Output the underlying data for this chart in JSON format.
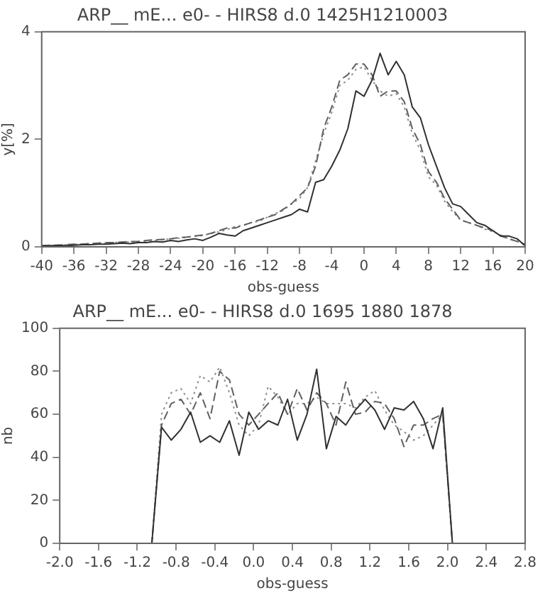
{
  "chart_data": [
    {
      "type": "line",
      "title": "ARP__ mE... e0- - HIRS8 d.0 1425H1210003",
      "xlabel": "obs-guess",
      "ylabel": "y[%]",
      "x": [
        -40,
        -39,
        -38,
        -37,
        -36,
        -35,
        -34,
        -33,
        -32,
        -31,
        -30,
        -29,
        -28,
        -27,
        -26,
        -25,
        -24,
        -23,
        -22,
        -21,
        -20,
        -19,
        -18,
        -17,
        -16,
        -15,
        -14,
        -13,
        -12,
        -11,
        -10,
        -9,
        -8,
        -7,
        -6,
        -5,
        -4,
        -3,
        -2,
        -1,
        0,
        1,
        2,
        3,
        4,
        5,
        6,
        7,
        8,
        9,
        10,
        11,
        12,
        13,
        14,
        15,
        16,
        17,
        18,
        19,
        20
      ],
      "series": [
        {
          "color": "#303030",
          "line_style": "solid",
          "values": [
            0.02,
            0.02,
            0.03,
            0.02,
            0.03,
            0.04,
            0.04,
            0.05,
            0.05,
            0.06,
            0.07,
            0.06,
            0.08,
            0.08,
            0.1,
            0.09,
            0.12,
            0.1,
            0.13,
            0.15,
            0.12,
            0.18,
            0.25,
            0.22,
            0.2,
            0.3,
            0.35,
            0.4,
            0.45,
            0.5,
            0.55,
            0.6,
            0.7,
            0.65,
            1.2,
            1.25,
            1.5,
            1.8,
            2.2,
            2.9,
            2.8,
            3.1,
            3.6,
            3.2,
            3.45,
            3.2,
            2.6,
            2.4,
            1.9,
            1.5,
            1.1,
            0.8,
            0.75,
            0.6,
            0.45,
            0.4,
            0.3,
            0.2,
            0.2,
            0.15,
            0.02
          ]
        },
        {
          "color": "#606060",
          "line_style": "dashed",
          "values": [
            0.02,
            0.03,
            0.03,
            0.04,
            0.05,
            0.05,
            0.06,
            0.07,
            0.08,
            0.08,
            0.09,
            0.1,
            0.1,
            0.12,
            0.13,
            0.14,
            0.15,
            0.17,
            0.18,
            0.2,
            0.22,
            0.25,
            0.3,
            0.35,
            0.35,
            0.4,
            0.45,
            0.5,
            0.55,
            0.6,
            0.7,
            0.8,
            0.95,
            1.1,
            1.5,
            2.2,
            2.6,
            3.1,
            3.2,
            3.4,
            3.4,
            3.2,
            2.8,
            2.9,
            2.9,
            2.7,
            2.2,
            1.9,
            1.4,
            1.2,
            0.9,
            0.7,
            0.5,
            0.45,
            0.4,
            0.35,
            0.3,
            0.2,
            0.15,
            0.1,
            0.05
          ]
        },
        {
          "color": "#909090",
          "line_style": "dotted",
          "values": [
            0.02,
            0.02,
            0.03,
            0.04,
            0.04,
            0.05,
            0.06,
            0.06,
            0.07,
            0.08,
            0.09,
            0.09,
            0.1,
            0.11,
            0.12,
            0.13,
            0.15,
            0.16,
            0.18,
            0.2,
            0.21,
            0.25,
            0.28,
            0.32,
            0.38,
            0.4,
            0.45,
            0.48,
            0.55,
            0.62,
            0.68,
            0.8,
            0.9,
            1.1,
            1.6,
            2.1,
            2.5,
            3.0,
            3.1,
            3.3,
            3.35,
            3.1,
            2.9,
            2.8,
            2.85,
            2.6,
            2.1,
            1.8,
            1.3,
            1.15,
            0.85,
            0.65,
            0.5,
            0.45,
            0.4,
            0.33,
            0.28,
            0.22,
            0.15,
            0.1,
            0.04
          ]
        }
      ],
      "xlim": [
        -40,
        20
      ],
      "xticks": [
        -40,
        -36,
        -32,
        -28,
        -24,
        -20,
        -16,
        -12,
        -8,
        -4,
        0,
        4,
        8,
        12,
        16,
        20
      ],
      "ylim": [
        0,
        4
      ],
      "yticks": [
        0,
        2,
        4
      ],
      "grid": false,
      "legend": false,
      "marker": "none"
    },
    {
      "type": "line",
      "title": "ARP__ mE... e0- - HIRS8 d.0 1695 1880 1878",
      "xlabel": "obs-guess",
      "ylabel": "nb",
      "series": [
        {
          "color": "#303030",
          "line_style": "solid",
          "x": [
            -2.0,
            -1.05,
            -0.95,
            -0.85,
            -0.75,
            -0.65,
            -0.55,
            -0.45,
            -0.35,
            -0.25,
            -0.15,
            -0.05,
            0.05,
            0.15,
            0.25,
            0.35,
            0.45,
            0.55,
            0.65,
            0.75,
            0.85,
            0.95,
            1.05,
            1.15,
            1.25,
            1.35,
            1.45,
            1.55,
            1.65,
            1.75,
            1.85,
            1.95,
            2.05,
            2.8
          ],
          "values": [
            0,
            0,
            54,
            48,
            53,
            61,
            47,
            50,
            47,
            57,
            41,
            61,
            53,
            57,
            55,
            67,
            48,
            60,
            81,
            44,
            59,
            55,
            62,
            67,
            62,
            53,
            63,
            62,
            66,
            58,
            44,
            63,
            0,
            0
          ]
        },
        {
          "color": "#606060",
          "line_style": "dashed",
          "x": [
            -2.0,
            -1.05,
            -0.95,
            -0.85,
            -0.75,
            -0.65,
            -0.55,
            -0.45,
            -0.35,
            -0.25,
            -0.15,
            -0.05,
            0.05,
            0.15,
            0.25,
            0.35,
            0.45,
            0.55,
            0.65,
            0.75,
            0.85,
            0.95,
            1.05,
            1.15,
            1.25,
            1.35,
            1.45,
            1.55,
            1.65,
            1.75,
            1.85,
            1.95,
            2.05,
            2.8
          ],
          "values": [
            0,
            0,
            55,
            65,
            67,
            60,
            70,
            58,
            80,
            76,
            60,
            55,
            60,
            65,
            70,
            60,
            72,
            62,
            70,
            65,
            55,
            75,
            60,
            61,
            66,
            65,
            58,
            45,
            55,
            55,
            58,
            60,
            0,
            0
          ]
        },
        {
          "color": "#909090",
          "line_style": "dotted",
          "x": [
            -2.0,
            -1.05,
            -0.95,
            -0.85,
            -0.75,
            -0.65,
            -0.55,
            -0.45,
            -0.35,
            -0.25,
            -0.15,
            -0.05,
            0.05,
            0.15,
            0.25,
            0.35,
            0.45,
            0.55,
            0.65,
            0.75,
            0.85,
            0.95,
            1.05,
            1.15,
            1.25,
            1.35,
            1.45,
            1.55,
            1.65,
            1.75,
            1.85,
            1.95,
            2.05,
            2.8
          ],
          "values": [
            0,
            0,
            60,
            70,
            72,
            65,
            78,
            75,
            82,
            70,
            55,
            50,
            55,
            73,
            68,
            60,
            65,
            65,
            68,
            65,
            65,
            65,
            63,
            68,
            71,
            62,
            55,
            52,
            48,
            50,
            55,
            60,
            0,
            0
          ]
        }
      ],
      "xlim": [
        -2.0,
        2.8
      ],
      "xticks": [
        {
          "value": -2.0,
          "label": "-2.0"
        },
        {
          "value": -1.6,
          "label": "-1.6"
        },
        {
          "value": -1.2,
          "label": "-1.2"
        },
        {
          "value": -0.8,
          "label": "-0.8"
        },
        {
          "value": -0.4,
          "label": "-0.4"
        },
        {
          "value": 0,
          "label": "0.0"
        },
        {
          "value": 0.4,
          "label": "0.4"
        },
        {
          "value": 0.8,
          "label": "0.8"
        },
        {
          "value": 1.2,
          "label": "1.2"
        },
        {
          "value": 1.6,
          "label": "1.6"
        },
        {
          "value": 2.0,
          "label": "2.0"
        },
        {
          "value": 2.4,
          "label": "2.4"
        },
        {
          "value": 2.8,
          "label": "2.8"
        }
      ],
      "ylim": [
        0,
        100
      ],
      "yticks": [
        0,
        20,
        40,
        60,
        80,
        100
      ],
      "grid": false,
      "legend": false,
      "marker": "none"
    }
  ]
}
